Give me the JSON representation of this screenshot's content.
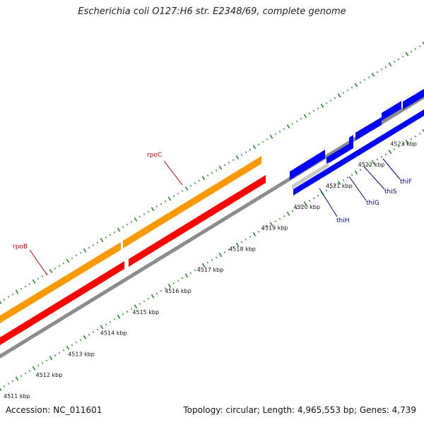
{
  "title": "Escherichia coli O127:H6 str. E2348/69, complete genome",
  "accession_label": "Accession: NC_011601",
  "topology_label": "Topology: circular; Length: 4,965,553 bp; Genes: 4,739",
  "kbp_ticks": [
    "4511 kbp",
    "4512 kbp",
    "4513 kbp",
    "4514 kbp",
    "4515 kbp",
    "4516 kbp",
    "4517 kbp",
    "4518 kbp",
    "4519 kbp",
    "4520 kbp",
    "4521 kbp",
    "4522 kbp",
    "4523 kbp"
  ],
  "genes": [
    {
      "name": "rpoB",
      "color": "#cc0000"
    },
    {
      "name": "rpoC",
      "color": "#cc0000"
    },
    {
      "name": "thiH",
      "color": "#00008b"
    },
    {
      "name": "thiG",
      "color": "#00008b"
    },
    {
      "name": "thiS",
      "color": "#00008b"
    },
    {
      "name": "thiF",
      "color": "#00008b"
    }
  ],
  "colors": {
    "rpo_forward": "#ff9900",
    "rpo_reverse": "#ff0000",
    "thi_genes": "#0000ff",
    "backbone": "#8c8c8c",
    "ticks": "#1f8f1f"
  }
}
